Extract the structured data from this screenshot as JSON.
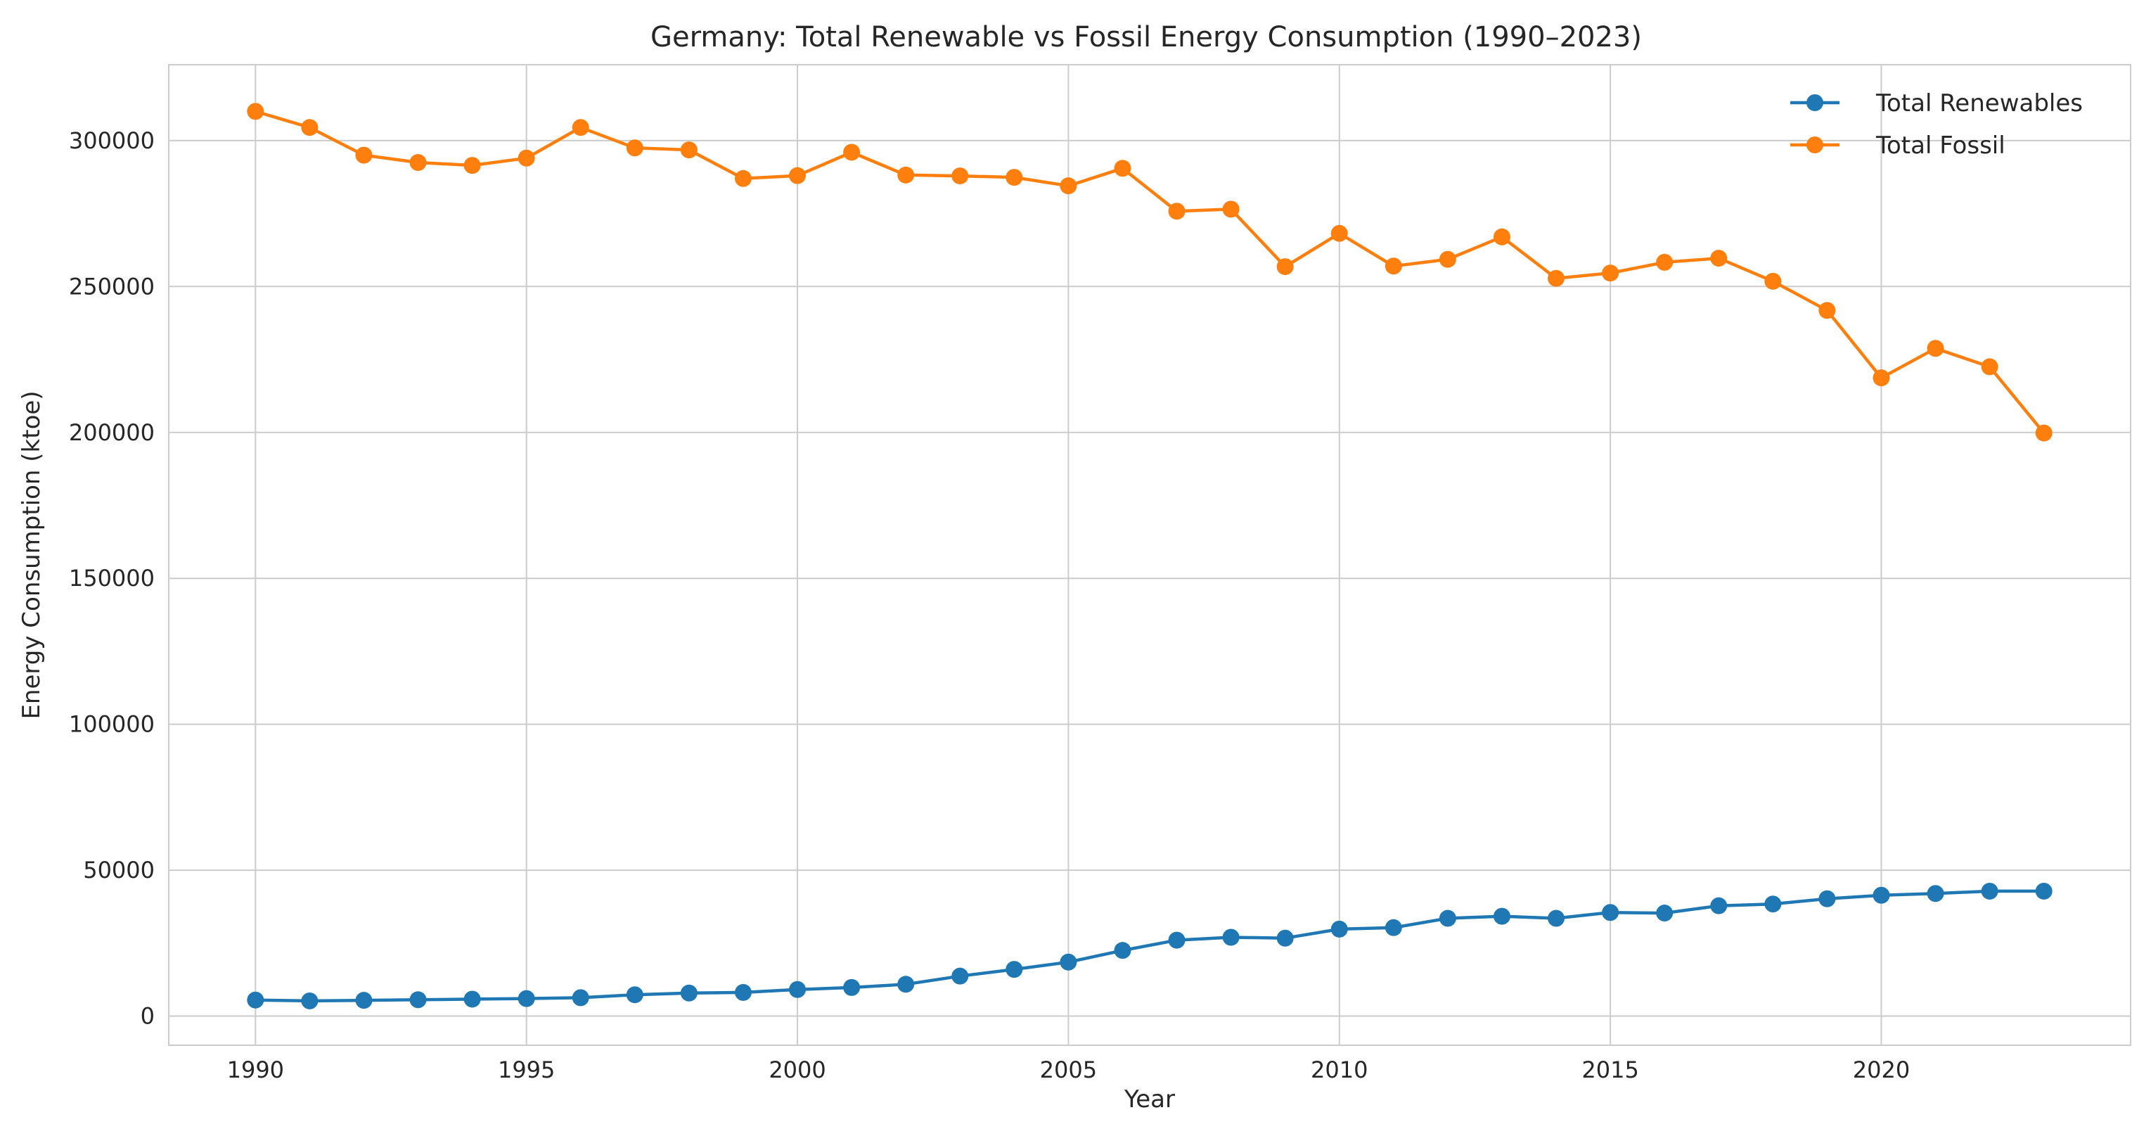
{
  "chart_data": {
    "type": "line",
    "title": "Germany: Total Renewable vs Fossil Energy Consumption (1990–2023)",
    "xlabel": "Year",
    "ylabel": "Energy Consumption (ktoe)",
    "x": [
      1990,
      1991,
      1992,
      1993,
      1994,
      1995,
      1996,
      1997,
      1998,
      1999,
      2000,
      2001,
      2002,
      2003,
      2004,
      2005,
      2006,
      2007,
      2008,
      2009,
      2010,
      2011,
      2012,
      2013,
      2014,
      2015,
      2016,
      2017,
      2018,
      2019,
      2020,
      2021,
      2022,
      2023
    ],
    "xlim": [
      1988.4,
      2024.6
    ],
    "ylim": [
      -10000,
      326000
    ],
    "x_ticks": [
      1990,
      1995,
      2000,
      2005,
      2010,
      2015,
      2020
    ],
    "y_ticks": [
      0,
      50000,
      100000,
      150000,
      200000,
      250000,
      300000
    ],
    "grid": true,
    "legend_position": "top-right",
    "series": [
      {
        "name": "Total Renewables",
        "color": "#1f77b4",
        "marker": "circle",
        "values": [
          5500,
          5200,
          5400,
          5600,
          5800,
          6000,
          6300,
          7300,
          7900,
          8100,
          9100,
          9800,
          10900,
          13700,
          16000,
          18500,
          22500,
          26000,
          27000,
          26700,
          29800,
          30300,
          33500,
          34200,
          33500,
          35500,
          35300,
          37800,
          38400,
          40200,
          41400,
          42000,
          42800,
          42800
        ]
      },
      {
        "name": "Total Fossil",
        "color": "#ff7f0e",
        "marker": "circle",
        "values": [
          310000,
          304500,
          295000,
          292500,
          291500,
          294000,
          304500,
          297500,
          296800,
          287000,
          288000,
          296000,
          288200,
          287900,
          287400,
          284500,
          290500,
          275800,
          276500,
          256800,
          268200,
          257000,
          259300,
          267000,
          252800,
          254600,
          258300,
          259700,
          251800,
          241800,
          218700,
          228800,
          222500,
          199800
        ]
      }
    ]
  }
}
